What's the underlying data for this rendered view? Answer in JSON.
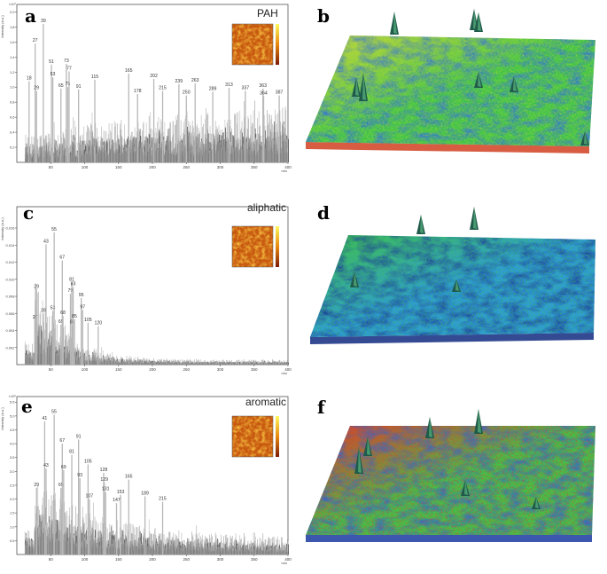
{
  "chart_data": [
    {
      "panel": "a",
      "type": "bar",
      "title": "PAH",
      "xlabel": "m/z",
      "ylabel": "Intensity (a.u.)",
      "y_multiplier": "×10⁷",
      "xlim": [
        0,
        400
      ],
      "ylim": [
        0,
        2.1
      ],
      "xticks": [
        50,
        100,
        150,
        200,
        250,
        300,
        350,
        400
      ],
      "yticks": [
        "0.2",
        "0.4",
        "0.6",
        "0.8",
        "1.0",
        "1.2",
        "1.4",
        "1.6",
        "1.8",
        "2.0"
      ],
      "peaks": [
        {
          "mz": 18,
          "y": 1.08
        },
        {
          "mz": 27,
          "y": 1.58
        },
        {
          "mz": 29,
          "y": 0.95
        },
        {
          "mz": 39,
          "y": 1.84
        },
        {
          "mz": 51,
          "y": 1.3
        },
        {
          "mz": 53,
          "y": 1.13
        },
        {
          "mz": 65,
          "y": 0.98
        },
        {
          "mz": 73,
          "y": 1.31
        },
        {
          "mz": 75,
          "y": 1.0
        },
        {
          "mz": 77,
          "y": 1.21
        },
        {
          "mz": 91,
          "y": 0.97
        },
        {
          "mz": 115,
          "y": 1.1
        },
        {
          "mz": 165,
          "y": 1.18
        },
        {
          "mz": 178,
          "y": 0.91
        },
        {
          "mz": 202,
          "y": 1.11
        },
        {
          "mz": 215,
          "y": 0.95
        },
        {
          "mz": 239,
          "y": 1.04
        },
        {
          "mz": 250,
          "y": 0.89
        },
        {
          "mz": 263,
          "y": 1.05
        },
        {
          "mz": 289,
          "y": 0.94
        },
        {
          "mz": 313,
          "y": 0.99
        },
        {
          "mz": 337,
          "y": 0.95
        },
        {
          "mz": 363,
          "y": 0.98
        },
        {
          "mz": 364,
          "y": 0.88
        },
        {
          "mz": 387,
          "y": 0.89
        }
      ]
    },
    {
      "panel": "c",
      "type": "bar",
      "title": "aliphatic",
      "xlabel": "m/z",
      "ylabel": "Intensity (a.u.)",
      "y_multiplier": "",
      "xlim": [
        0,
        400
      ],
      "ylim": [
        0,
        0.0185
      ],
      "xticks": [
        50,
        100,
        150,
        200,
        250,
        300,
        350,
        400
      ],
      "yticks": [
        "0.002",
        "0.004",
        "0.006",
        "0.008",
        "0.010",
        "0.012",
        "0.014",
        "0.016"
      ],
      "peaks": [
        {
          "mz": 27,
          "y": 0.0052
        },
        {
          "mz": 29,
          "y": 0.0088
        },
        {
          "mz": 39,
          "y": 0.006
        },
        {
          "mz": 43,
          "y": 0.0141
        },
        {
          "mz": 53,
          "y": 0.0063
        },
        {
          "mz": 55,
          "y": 0.0155
        },
        {
          "mz": 65,
          "y": 0.0047
        },
        {
          "mz": 67,
          "y": 0.0122
        },
        {
          "mz": 68,
          "y": 0.0057
        },
        {
          "mz": 79,
          "y": 0.0083
        },
        {
          "mz": 81,
          "y": 0.0096
        },
        {
          "mz": 82,
          "y": 0.0046
        },
        {
          "mz": 83,
          "y": 0.0091
        },
        {
          "mz": 85,
          "y": 0.0053
        },
        {
          "mz": 95,
          "y": 0.0078
        },
        {
          "mz": 97,
          "y": 0.0064
        },
        {
          "mz": 105,
          "y": 0.0049
        },
        {
          "mz": 120,
          "y": 0.0045
        }
      ]
    },
    {
      "panel": "e",
      "type": "bar",
      "title": "aromatic",
      "xlabel": "m/z",
      "ylabel": "Intensity (a.u.)",
      "y_multiplier": "×10⁵",
      "xlim": [
        0,
        400
      ],
      "ylim": [
        0,
        5.7
      ],
      "xticks": [
        50,
        100,
        150,
        200,
        250,
        300,
        350,
        400
      ],
      "yticks": [
        "0.5",
        "1.0",
        "1.5",
        "2.0",
        "2.5",
        "3.0",
        "3.5",
        "4.0",
        "4.5",
        "5.0",
        "5.5"
      ],
      "peaks": [
        {
          "mz": 29,
          "y": 2.4
        },
        {
          "mz": 41,
          "y": 4.8
        },
        {
          "mz": 43,
          "y": 3.1
        },
        {
          "mz": 55,
          "y": 5.05
        },
        {
          "mz": 65,
          "y": 2.4
        },
        {
          "mz": 67,
          "y": 4.0
        },
        {
          "mz": 69,
          "y": 3.05
        },
        {
          "mz": 81,
          "y": 3.6
        },
        {
          "mz": 91,
          "y": 4.15
        },
        {
          "mz": 93,
          "y": 2.75
        },
        {
          "mz": 105,
          "y": 3.25
        },
        {
          "mz": 107,
          "y": 2.0
        },
        {
          "mz": 128,
          "y": 2.95
        },
        {
          "mz": 129,
          "y": 2.6
        },
        {
          "mz": 131,
          "y": 2.25
        },
        {
          "mz": 147,
          "y": 1.85
        },
        {
          "mz": 153,
          "y": 2.15
        },
        {
          "mz": 165,
          "y": 2.7
        },
        {
          "mz": 189,
          "y": 2.1
        },
        {
          "mz": 215,
          "y": 1.9
        }
      ]
    }
  ],
  "panels": {
    "a": "a",
    "b": "b",
    "c": "c",
    "d": "d",
    "e": "e",
    "f": "f"
  },
  "titles": [
    "PAH",
    "aliphatic",
    "aromatic"
  ],
  "colors": {
    "surface_low": "#1a3fa8",
    "surface_mid": "#35c24a",
    "surface_high": "#d8322a",
    "inset": "#e39a1a"
  }
}
